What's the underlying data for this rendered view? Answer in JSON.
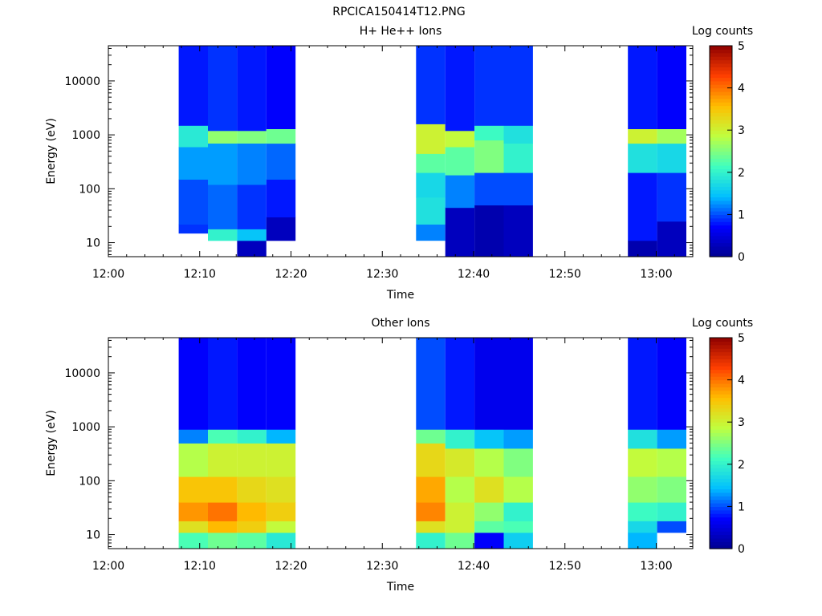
{
  "figure_title": "RPCICA150414T12.PNG",
  "colormap": [
    "#00008f",
    "#0000ff",
    "#00bfff",
    "#40ffbf",
    "#bfff40",
    "#ffbf00",
    "#ff4000",
    "#8f0000"
  ],
  "chart_data": [
    {
      "type": "heatmap",
      "title": "H+ He++ Ions",
      "xlabel": "Time",
      "ylabel": "Energy (eV)",
      "x_tick_labels": [
        "12:00",
        "12:10",
        "12:20",
        "12:30",
        "12:40",
        "12:50",
        "13:00"
      ],
      "x_ticks_min": [
        0,
        10,
        20,
        30,
        40,
        50,
        60
      ],
      "xlim_min": [
        0,
        64
      ],
      "y_scale": "log",
      "y_tick_labels": [
        "10",
        "100",
        "1000",
        "10000"
      ],
      "y_ticks": [
        10,
        100,
        1000,
        10000
      ],
      "ylim": [
        5.5,
        45000
      ],
      "colorbar": {
        "label": "Log counts",
        "range": [
          0,
          5
        ],
        "tick_labels": [
          "0",
          "1",
          "2",
          "3",
          "4",
          "5"
        ]
      },
      "columns": [
        {
          "t_start_min": 7.7,
          "t_end_min": 10.9,
          "e_min": 15,
          "bands": [
            [
              15,
              22,
              0.9
            ],
            [
              22,
              150,
              1.0
            ],
            [
              150,
              600,
              1.3
            ],
            [
              600,
              1500,
              1.9
            ],
            [
              1500,
              45000,
              0.8
            ]
          ]
        },
        {
          "t_start_min": 10.9,
          "t_end_min": 14.1,
          "e_min": 11,
          "bands": [
            [
              11,
              18,
              2.0
            ],
            [
              18,
              120,
              1.1
            ],
            [
              120,
              700,
              1.3
            ],
            [
              700,
              1200,
              2.6
            ],
            [
              1200,
              45000,
              0.9
            ]
          ]
        },
        {
          "t_start_min": 14.1,
          "t_end_min": 17.3,
          "e_min": 5.5,
          "bands": [
            [
              5.5,
              11,
              0.3
            ],
            [
              11,
              18,
              1.5
            ],
            [
              18,
              120,
              0.9
            ],
            [
              120,
              700,
              1.2
            ],
            [
              700,
              1200,
              2.5
            ],
            [
              1200,
              45000,
              0.8
            ]
          ]
        },
        {
          "t_start_min": 17.3,
          "t_end_min": 20.5,
          "e_min": 11,
          "bands": [
            [
              11,
              30,
              0.3
            ],
            [
              30,
              150,
              0.8
            ],
            [
              150,
              700,
              1.1
            ],
            [
              700,
              1300,
              2.4
            ],
            [
              1300,
              45000,
              0.7
            ]
          ]
        },
        {
          "t_start_min": 33.7,
          "t_end_min": 36.9,
          "e_min": 11,
          "bands": [
            [
              11,
              22,
              1.2
            ],
            [
              22,
              70,
              1.8
            ],
            [
              70,
              200,
              1.7
            ],
            [
              200,
              450,
              2.3
            ],
            [
              450,
              1600,
              3.0
            ],
            [
              1600,
              45000,
              0.9
            ]
          ]
        },
        {
          "t_start_min": 36.9,
          "t_end_min": 40.1,
          "e_min": 5.5,
          "bands": [
            [
              5.5,
              45,
              0.3
            ],
            [
              45,
              180,
              1.2
            ],
            [
              180,
              600,
              2.3
            ],
            [
              600,
              1200,
              2.9
            ],
            [
              1200,
              45000,
              0.8
            ]
          ]
        },
        {
          "t_start_min": 40.1,
          "t_end_min": 43.3,
          "e_min": 5.5,
          "bands": [
            [
              5.5,
              50,
              0.2
            ],
            [
              50,
              200,
              1.0
            ],
            [
              200,
              800,
              2.5
            ],
            [
              800,
              1500,
              2.1
            ],
            [
              1500,
              45000,
              0.9
            ]
          ]
        },
        {
          "t_start_min": 43.3,
          "t_end_min": 46.5,
          "e_min": 5.5,
          "bands": [
            [
              5.5,
              50,
              0.3
            ],
            [
              50,
              200,
              1.0
            ],
            [
              200,
              700,
              2.0
            ],
            [
              700,
              1500,
              1.8
            ],
            [
              1500,
              45000,
              0.9
            ]
          ]
        },
        {
          "t_start_min": 56.9,
          "t_end_min": 60.1,
          "e_min": 5.5,
          "bands": [
            [
              5.5,
              11,
              0.2
            ],
            [
              11,
              200,
              0.8
            ],
            [
              200,
              700,
              1.8
            ],
            [
              700,
              1300,
              3.0
            ],
            [
              1300,
              45000,
              0.8
            ]
          ]
        },
        {
          "t_start_min": 60.1,
          "t_end_min": 63.3,
          "e_min": 5.5,
          "bands": [
            [
              5.5,
              25,
              0.3
            ],
            [
              25,
              200,
              0.9
            ],
            [
              200,
              700,
              1.7
            ],
            [
              700,
              1300,
              2.7
            ],
            [
              1300,
              45000,
              0.7
            ]
          ]
        }
      ]
    },
    {
      "type": "heatmap",
      "title": "Other Ions",
      "xlabel": "Time",
      "ylabel": "Energy (eV)",
      "x_tick_labels": [
        "12:00",
        "12:10",
        "12:20",
        "12:30",
        "12:40",
        "12:50",
        "13:00"
      ],
      "x_ticks_min": [
        0,
        10,
        20,
        30,
        40,
        50,
        60
      ],
      "xlim_min": [
        0,
        64
      ],
      "y_scale": "log",
      "y_tick_labels": [
        "10",
        "100",
        "1000",
        "10000"
      ],
      "y_ticks": [
        10,
        100,
        1000,
        10000
      ],
      "ylim": [
        5.5,
        45000
      ],
      "colorbar": {
        "label": "Log counts",
        "range": [
          0,
          5
        ],
        "tick_labels": [
          "0",
          "1",
          "2",
          "3",
          "4",
          "5"
        ]
      },
      "columns": [
        {
          "t_start_min": 7.7,
          "t_end_min": 10.9,
          "e_min": 5.5,
          "bands": [
            [
              5.5,
              11,
              2.2
            ],
            [
              11,
              18,
              3.2
            ],
            [
              18,
              40,
              3.8
            ],
            [
              40,
              120,
              3.5
            ],
            [
              120,
              500,
              2.8
            ],
            [
              500,
              900,
              1.2
            ],
            [
              900,
              45000,
              0.7
            ]
          ]
        },
        {
          "t_start_min": 10.9,
          "t_end_min": 14.1,
          "e_min": 5.5,
          "bands": [
            [
              5.5,
              11,
              2.4
            ],
            [
              11,
              18,
              3.6
            ],
            [
              18,
              40,
              4.0
            ],
            [
              40,
              120,
              3.5
            ],
            [
              120,
              500,
              3.0
            ],
            [
              500,
              900,
              2.2
            ],
            [
              900,
              45000,
              0.8
            ]
          ]
        },
        {
          "t_start_min": 14.1,
          "t_end_min": 17.3,
          "e_min": 5.5,
          "bands": [
            [
              5.5,
              11,
              2.3
            ],
            [
              11,
              18,
              3.4
            ],
            [
              18,
              40,
              3.6
            ],
            [
              40,
              120,
              3.3
            ],
            [
              120,
              500,
              3.0
            ],
            [
              500,
              900,
              2.0
            ],
            [
              900,
              45000,
              0.7
            ]
          ]
        },
        {
          "t_start_min": 17.3,
          "t_end_min": 20.5,
          "e_min": 5.5,
          "bands": [
            [
              5.5,
              11,
              1.9
            ],
            [
              11,
              18,
              2.9
            ],
            [
              18,
              40,
              3.4
            ],
            [
              40,
              120,
              3.2
            ],
            [
              120,
              500,
              3.0
            ],
            [
              500,
              900,
              1.4
            ],
            [
              900,
              45000,
              0.7
            ]
          ]
        },
        {
          "t_start_min": 33.7,
          "t_end_min": 36.9,
          "e_min": 5.5,
          "bands": [
            [
              5.5,
              11,
              2.0
            ],
            [
              11,
              18,
              3.2
            ],
            [
              18,
              40,
              3.9
            ],
            [
              40,
              120,
              3.7
            ],
            [
              120,
              500,
              3.3
            ],
            [
              500,
              900,
              2.4
            ],
            [
              900,
              45000,
              1.0
            ]
          ]
        },
        {
          "t_start_min": 36.9,
          "t_end_min": 40.1,
          "e_min": 5.5,
          "bands": [
            [
              5.5,
              11,
              2.4
            ],
            [
              11,
              40,
              3.0
            ],
            [
              40,
              120,
              2.8
            ],
            [
              120,
              400,
              3.1
            ],
            [
              400,
              900,
              2.0
            ],
            [
              900,
              45000,
              0.8
            ]
          ]
        },
        {
          "t_start_min": 40.1,
          "t_end_min": 43.3,
          "e_min": 5.5,
          "bands": [
            [
              5.5,
              11,
              0.7
            ],
            [
              11,
              18,
              2.3
            ],
            [
              18,
              40,
              2.6
            ],
            [
              40,
              120,
              3.2
            ],
            [
              120,
              400,
              2.8
            ],
            [
              400,
              900,
              1.5
            ],
            [
              900,
              45000,
              0.6
            ]
          ]
        },
        {
          "t_start_min": 43.3,
          "t_end_min": 46.5,
          "e_min": 5.5,
          "bands": [
            [
              5.5,
              11,
              1.6
            ],
            [
              11,
              18,
              2.2
            ],
            [
              18,
              40,
              2.0
            ],
            [
              40,
              120,
              2.8
            ],
            [
              120,
              400,
              2.5
            ],
            [
              400,
              900,
              1.3
            ],
            [
              900,
              45000,
              0.6
            ]
          ]
        },
        {
          "t_start_min": 56.9,
          "t_end_min": 60.1,
          "e_min": 5.5,
          "bands": [
            [
              5.5,
              11,
              1.4
            ],
            [
              11,
              18,
              1.7
            ],
            [
              18,
              40,
              2.1
            ],
            [
              40,
              120,
              2.6
            ],
            [
              120,
              400,
              2.9
            ],
            [
              400,
              900,
              1.8
            ],
            [
              900,
              45000,
              0.8
            ]
          ]
        },
        {
          "t_start_min": 60.1,
          "t_end_min": 63.3,
          "e_min": 11,
          "bands": [
            [
              11,
              18,
              1.0
            ],
            [
              18,
              40,
              2.0
            ],
            [
              40,
              120,
              2.5
            ],
            [
              120,
              400,
              2.8
            ],
            [
              400,
              900,
              1.3
            ],
            [
              900,
              45000,
              0.7
            ]
          ]
        }
      ]
    }
  ]
}
